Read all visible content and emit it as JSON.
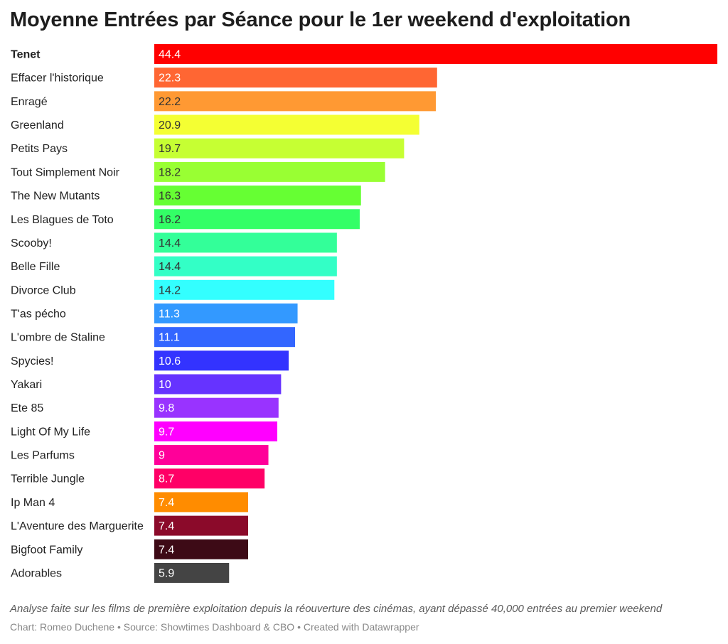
{
  "header": {
    "title": "Moyenne Entrées par Séance pour le 1er weekend d'exploitation"
  },
  "footer": {
    "note": "Analyse faite sur les films de première exploitation depuis la réouverture des cinémas, ayant dépassé 40,000 entrées au premier weekend",
    "credits": "Chart: Romeo Duchene • Source: Showtimes Dashboard & CBO • Created with Datawrapper"
  },
  "chart_data": {
    "type": "bar",
    "orientation": "horizontal",
    "title": "Moyenne Entrées par Séance pour le 1er weekend d'exploitation",
    "xlabel": "",
    "ylabel": "",
    "xlim": [
      0,
      44.4
    ],
    "grid": false,
    "legend": "none",
    "bold_categories": [
      "Tenet"
    ],
    "categories": [
      "Tenet",
      "Effacer l'historique",
      "Enragé",
      "Greenland",
      "Petits Pays",
      "Tout Simplement Noir",
      "The New Mutants",
      "Les Blagues de Toto",
      "Scooby!",
      "Belle Fille",
      "Divorce Club",
      "T'as pécho",
      "L'ombre de Staline",
      "Spycies!",
      "Yakari",
      "Ete 85",
      "Light Of My Life",
      "Les Parfums",
      "Terrible Jungle",
      "Ip Man 4",
      "L'Aventure des Marguerite",
      "Bigfoot Family",
      "Adorables"
    ],
    "values": [
      44.4,
      22.3,
      22.2,
      20.9,
      19.7,
      18.2,
      16.3,
      16.2,
      14.4,
      14.4,
      14.2,
      11.3,
      11.1,
      10.6,
      10,
      9.8,
      9.7,
      9,
      8.7,
      7.4,
      7.4,
      7.4,
      5.9
    ],
    "value_labels": [
      "44.4",
      "22.3",
      "22.2",
      "20.9",
      "19.7",
      "18.2",
      "16.3",
      "16.2",
      "14.4",
      "14.4",
      "14.2",
      "11.3",
      "11.1",
      "10.6",
      "10",
      "9.8",
      "9.7",
      "9",
      "8.7",
      "7.4",
      "7.4",
      "7.4",
      "5.9"
    ],
    "colors": [
      "#ff0000",
      "#ff6633",
      "#ff9933",
      "#f4ff33",
      "#c6ff33",
      "#99ff33",
      "#66ff33",
      "#33ff66",
      "#33ff99",
      "#33ffc6",
      "#33ffff",
      "#3399ff",
      "#3366ff",
      "#3333ff",
      "#6633ff",
      "#9933ff",
      "#ff00ff",
      "#ff0099",
      "#ff0066",
      "#ff8c00",
      "#8b0a2a",
      "#3d0a16",
      "#444444"
    ],
    "label_colors": [
      "#ffffff",
      "#ffffff",
      "#333333",
      "#333333",
      "#333333",
      "#333333",
      "#333333",
      "#333333",
      "#333333",
      "#333333",
      "#333333",
      "#ffffff",
      "#ffffff",
      "#ffffff",
      "#ffffff",
      "#ffffff",
      "#ffffff",
      "#ffffff",
      "#ffffff",
      "#ffffff",
      "#ffffff",
      "#ffffff",
      "#ffffff"
    ]
  }
}
